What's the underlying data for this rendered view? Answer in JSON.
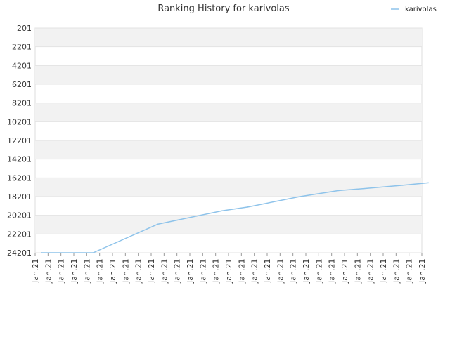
{
  "chart_data": {
    "type": "line",
    "title": "Ranking History for karivolas",
    "xlabel": "",
    "ylabel": "",
    "ylim": [
      201,
      24201
    ],
    "y_reversed": true,
    "y_ticks": [
      201,
      2201,
      4201,
      6201,
      8201,
      10201,
      12201,
      14201,
      16201,
      18201,
      20201,
      22201,
      24201
    ],
    "x_tick_labels": [
      "Jan.21",
      "Jan.21",
      "Jan.21",
      "Jan.21",
      "Jan.21",
      "Jan.21",
      "Jan.21",
      "Jan.21",
      "Jan.21",
      "Jan.21",
      "Jan.21",
      "Jan.21",
      "Jan.21",
      "Jan.21",
      "Jan.21",
      "Jan.21",
      "Jan.21",
      "Jan.21",
      "Jan.21",
      "Jan.21",
      "Jan.21",
      "Jan.21",
      "Jan.21",
      "Jan.21",
      "Jan.21",
      "Jan.21",
      "Jan.21",
      "Jan.21",
      "Jan.21",
      "Jan.21",
      "Jan.21"
    ],
    "grid": true,
    "grid_banding": true,
    "legend_position": "top-right",
    "series": [
      {
        "name": "karivolas",
        "color": "#8ec3ea",
        "points": [
          {
            "x": 0.5,
            "y": 24201
          },
          {
            "x": 4.5,
            "y": 24201
          },
          {
            "x": 9.5,
            "y": 21155
          },
          {
            "x": 14.5,
            "y": 19720
          },
          {
            "x": 16.5,
            "y": 19320
          },
          {
            "x": 20.5,
            "y": 18210
          },
          {
            "x": 23.5,
            "y": 17560
          },
          {
            "x": 25.5,
            "y": 17350
          },
          {
            "x": 28.5,
            "y": 16990
          },
          {
            "x": 30.5,
            "y": 16730
          }
        ]
      }
    ]
  }
}
